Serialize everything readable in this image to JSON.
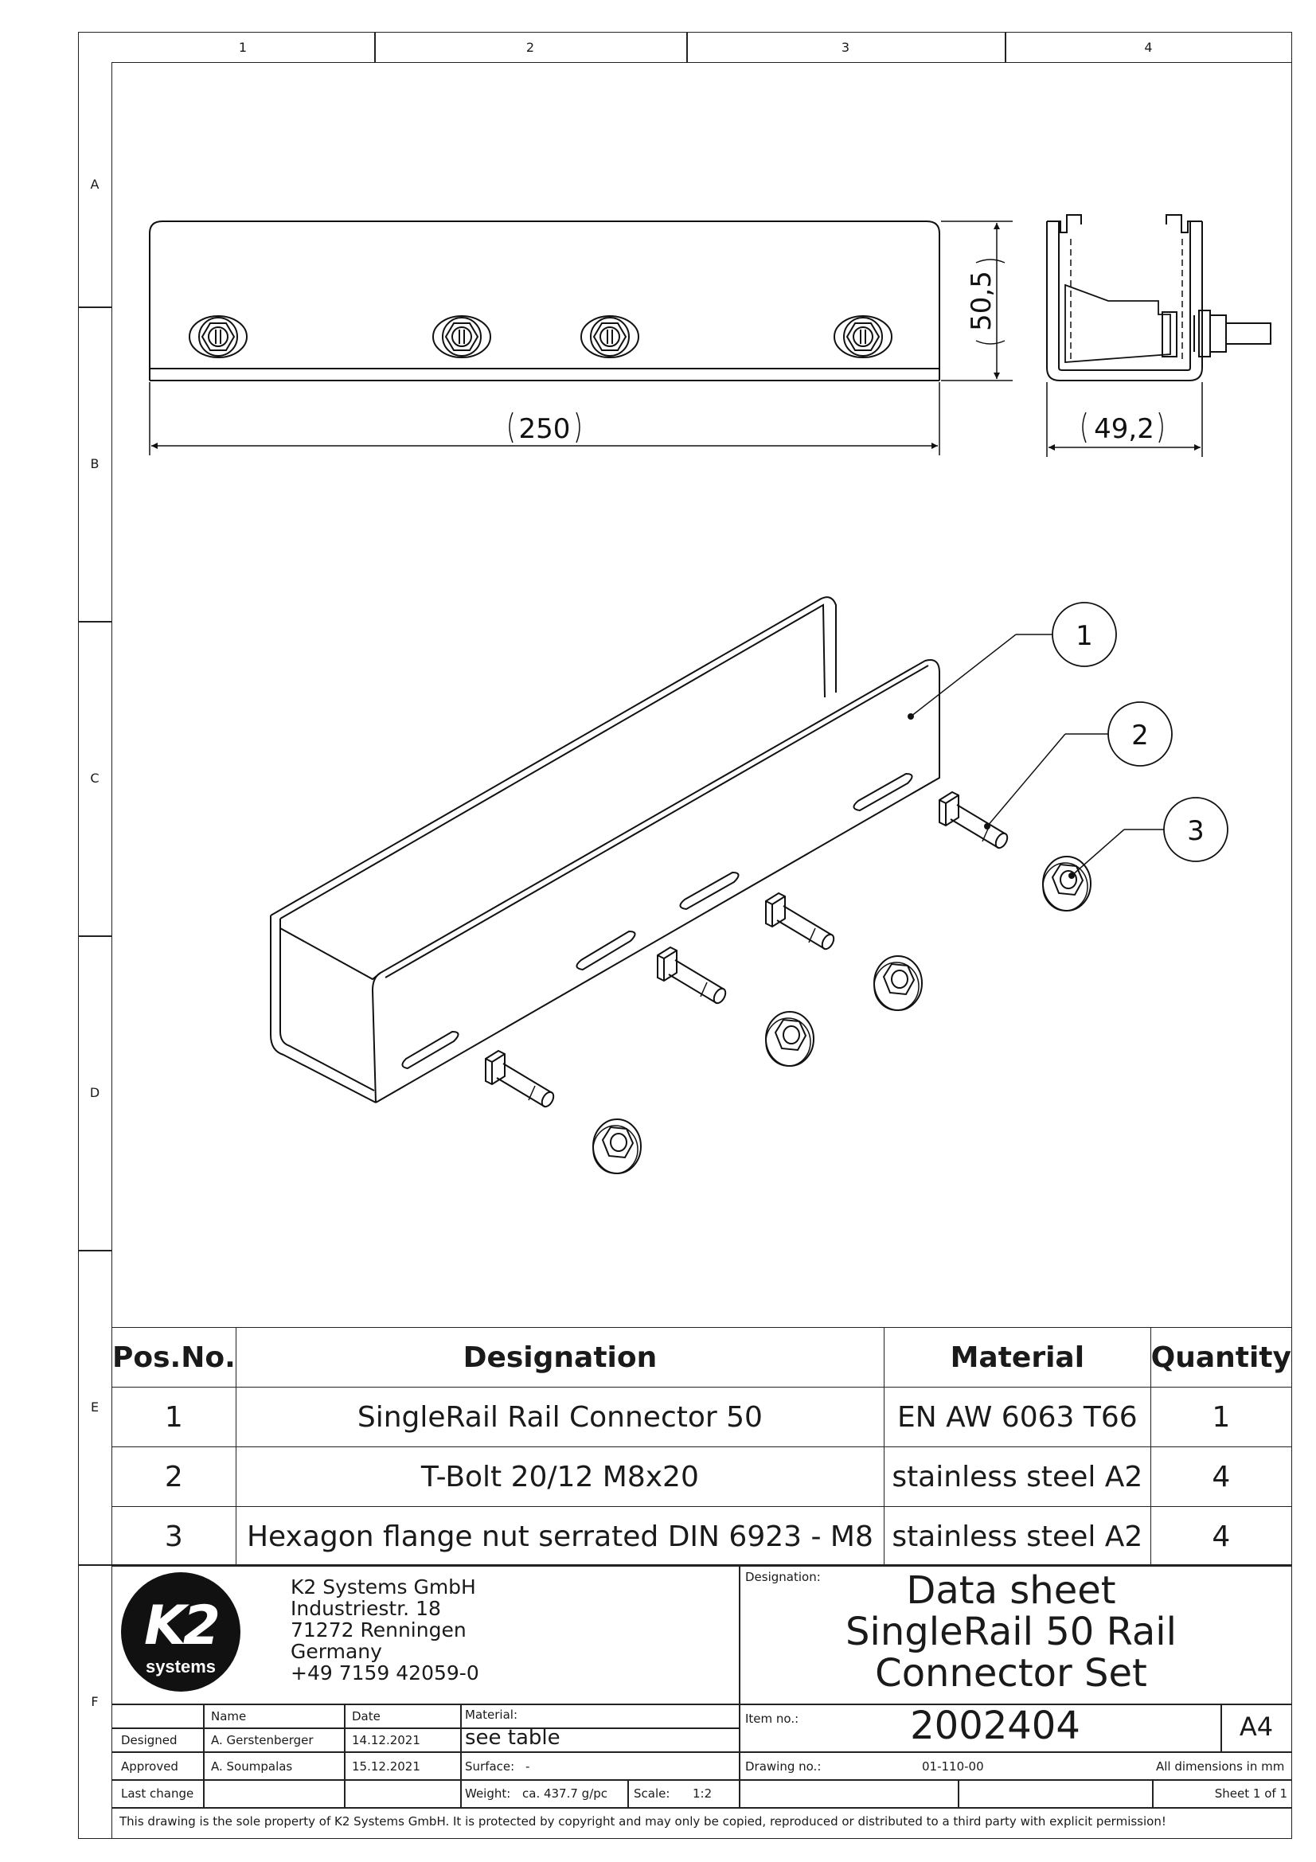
{
  "frame": {
    "columns": [
      "1",
      "2",
      "3",
      "4"
    ],
    "rows": [
      "A",
      "B",
      "C",
      "D",
      "E",
      "F"
    ]
  },
  "drawing": {
    "dim_length": "250",
    "dim_height": "50,5",
    "dim_width": "49,2",
    "balloons": [
      "1",
      "2",
      "3"
    ]
  },
  "bom": {
    "headers": [
      "Pos.No.",
      "Designation",
      "Material",
      "Quantity"
    ],
    "rows": [
      {
        "pos": "1",
        "designation": "SingleRail Rail Connector 50",
        "material": "EN AW 6063 T66",
        "qty": "1"
      },
      {
        "pos": "2",
        "designation": "T-Bolt 20/12 M8x20",
        "material": "stainless steel A2",
        "qty": "4"
      },
      {
        "pos": "3",
        "designation": "Hexagon flange nut serrated  DIN 6923 - M8",
        "material": "stainless steel A2",
        "qty": "4"
      }
    ]
  },
  "company": {
    "logo_text": "K2",
    "logo_sub": "systems",
    "name": "K2 Systems GmbH",
    "street": "Industriestr. 18",
    "city": "71272 Renningen",
    "country": "Germany",
    "phone": "+49 7159 42059-0"
  },
  "title_block": {
    "designation_label": "Designation:",
    "title_line1": "Data sheet",
    "title_line2": "SingleRail 50 Rail",
    "title_line3": "Connector Set",
    "name_header": "Name",
    "date_header": "Date",
    "material_label": "Material:",
    "material_value": "see table",
    "item_no_label": "Item no.:",
    "item_no": "2002404",
    "paper_size": "A4",
    "designed_label": "Designed",
    "designed_name": "A. Gerstenberger",
    "designed_date": "14.12.2021",
    "approved_label": "Approved",
    "approved_name": "A. Soumpalas",
    "approved_date": "15.12.2021",
    "surface_label": "Surface:",
    "surface_value": "-",
    "drawing_no_label": "Drawing no.:",
    "drawing_no": "01-110-00",
    "dimensions_note": "All dimensions in mm",
    "last_change_label": "Last change",
    "weight_label": "Weight:",
    "weight_value": "ca. 437.7 g/pc",
    "scale_label": "Scale:",
    "scale_value": "1:2",
    "sheet": "Sheet 1 of 1",
    "copyright": "This drawing is the sole property of K2 Systems GmbH.  It is protected by copyright and may only be copied, reproduced or distributed to a third party with explicit permission!"
  }
}
